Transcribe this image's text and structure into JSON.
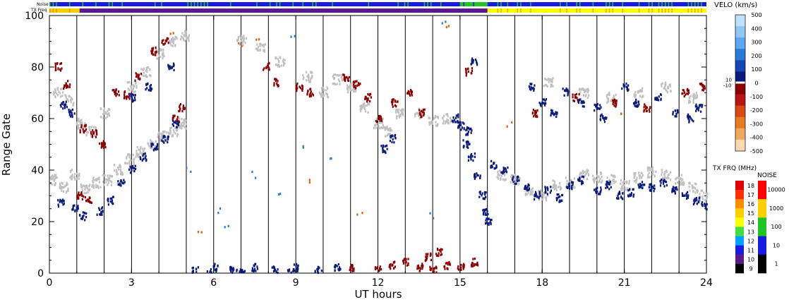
{
  "chart_data": {
    "type": "heatmap",
    "xlabel": "UT hours",
    "ylabel": "Range Gate",
    "xlim": [
      0,
      24
    ],
    "ylim": [
      0,
      100
    ],
    "x_ticks": [
      "0",
      "3",
      "6",
      "9",
      "12",
      "15",
      "18",
      "21",
      "24"
    ],
    "y_ticks": [
      "0",
      "20",
      "40",
      "60",
      "80",
      "100"
    ],
    "hour_lines": [
      1,
      2,
      3,
      4,
      5,
      6,
      7,
      8,
      9,
      10,
      11,
      12,
      13,
      14,
      15,
      16,
      17,
      18,
      19,
      20,
      21,
      22,
      23
    ],
    "strips": {
      "noise_label": "Noise",
      "freq_label": "TX Freq",
      "noise_segments": [
        {
          "from": 0,
          "to": 15,
          "color": "#1a1ae6",
          "speckle": "#22c422"
        },
        {
          "from": 15,
          "to": 16,
          "color": "#22c422",
          "speckle": "#1a1ae6"
        },
        {
          "from": 16,
          "to": 24,
          "color": "#1a1ae6",
          "speckle": "#22c422"
        }
      ],
      "freq_segments": [
        {
          "from": 0,
          "to": 1.1,
          "color": "#f0d000",
          "speckle": "#ff8c00"
        },
        {
          "from": 1.1,
          "to": 16,
          "color": "#5a1a8a",
          "speckle": "#5a1a8a"
        },
        {
          "from": 16,
          "to": 24,
          "color": "#ffff00",
          "speckle": "#ffa000"
        }
      ]
    },
    "series": [
      {
        "role": "ground-scatter",
        "color": "#c0c0c0",
        "points": [
          [
            0.1,
            36
          ],
          [
            0.5,
            33
          ],
          [
            0.9,
            38
          ],
          [
            1.3,
            33
          ],
          [
            1.7,
            35
          ],
          [
            2.1,
            36
          ],
          [
            2.5,
            40
          ],
          [
            2.9,
            44
          ],
          [
            3.3,
            47
          ],
          [
            3.7,
            50
          ],
          [
            4.1,
            53
          ],
          [
            4.5,
            55
          ],
          [
            4.8,
            58
          ],
          [
            0.3,
            70
          ],
          [
            0.7,
            67
          ],
          [
            1.1,
            58
          ],
          [
            1.5,
            55
          ],
          [
            2.0,
            62
          ],
          [
            3.0,
            72
          ],
          [
            3.5,
            78
          ],
          [
            4.0,
            85
          ],
          [
            4.5,
            90
          ],
          [
            4.9,
            92
          ],
          [
            10.5,
            75
          ],
          [
            11.0,
            72
          ],
          [
            11.5,
            64
          ],
          [
            12.0,
            58
          ],
          [
            12.3,
            55
          ],
          [
            12.8,
            62
          ],
          [
            13.5,
            62
          ],
          [
            14.0,
            59
          ],
          [
            14.5,
            60
          ],
          [
            16.5,
            38
          ],
          [
            17.0,
            36
          ],
          [
            17.5,
            32
          ],
          [
            18.0,
            30
          ],
          [
            18.5,
            34
          ],
          [
            19.0,
            35
          ],
          [
            19.5,
            38
          ],
          [
            20.0,
            37
          ],
          [
            20.5,
            36
          ],
          [
            21.0,
            34
          ],
          [
            21.5,
            37
          ],
          [
            22.0,
            39
          ],
          [
            22.5,
            38
          ],
          [
            23.0,
            36
          ],
          [
            23.5,
            33
          ],
          [
            23.9,
            30
          ],
          [
            18.2,
            74
          ],
          [
            19.5,
            70
          ],
          [
            20.5,
            68
          ],
          [
            21.5,
            70
          ],
          [
            22.5,
            72
          ],
          [
            23.5,
            68
          ],
          [
            7.0,
            90
          ],
          [
            7.7,
            87
          ],
          [
            8.4,
            82
          ],
          [
            9.4,
            76
          ],
          [
            10.0,
            70
          ]
        ]
      },
      {
        "role": "velocity-negative",
        "color": "#8b0000",
        "points": [
          [
            0.3,
            80
          ],
          [
            0.6,
            73
          ],
          [
            1.2,
            56
          ],
          [
            1.6,
            54
          ],
          [
            1.9,
            50
          ],
          [
            1.1,
            30
          ],
          [
            1.4,
            28
          ],
          [
            2.4,
            70
          ],
          [
            2.8,
            69
          ],
          [
            3.2,
            76
          ],
          [
            3.8,
            86
          ],
          [
            4.2,
            90
          ],
          [
            4.6,
            60
          ],
          [
            4.8,
            64
          ],
          [
            7.9,
            80
          ],
          [
            8.3,
            74
          ],
          [
            9.1,
            72
          ],
          [
            9.5,
            70
          ],
          [
            10.8,
            76
          ],
          [
            11.2,
            73
          ],
          [
            11.6,
            68
          ],
          [
            12.0,
            60
          ],
          [
            12.6,
            66
          ],
          [
            13.1,
            70
          ],
          [
            13.6,
            62
          ],
          [
            11.0,
            2
          ],
          [
            12.0,
            1
          ],
          [
            12.5,
            3
          ],
          [
            13.0,
            4
          ],
          [
            13.5,
            2
          ],
          [
            14.0,
            1
          ],
          [
            14.5,
            3
          ],
          [
            15.0,
            2
          ],
          [
            15.5,
            4
          ],
          [
            14.2,
            8
          ],
          [
            13.8,
            6
          ],
          [
            17.7,
            62
          ],
          [
            19.2,
            68
          ],
          [
            20.6,
            66
          ],
          [
            21.8,
            64
          ],
          [
            23.2,
            70
          ],
          [
            23.8,
            72
          ],
          [
            15.3,
            78
          ]
        ]
      },
      {
        "role": "velocity-positive",
        "color": "#0a1a7a",
        "points": [
          [
            0.4,
            27
          ],
          [
            0.9,
            25
          ],
          [
            1.2,
            22
          ],
          [
            1.8,
            24
          ],
          [
            2.2,
            28
          ],
          [
            2.6,
            35
          ],
          [
            3.0,
            40
          ],
          [
            3.4,
            45
          ],
          [
            3.8,
            49
          ],
          [
            4.2,
            52
          ],
          [
            4.6,
            58
          ],
          [
            0.5,
            65
          ],
          [
            0.8,
            62
          ],
          [
            3.0,
            68
          ],
          [
            3.6,
            72
          ],
          [
            4.4,
            80
          ],
          [
            5.3,
            1
          ],
          [
            6.0,
            2
          ],
          [
            6.7,
            1
          ],
          [
            7.5,
            2
          ],
          [
            8.2,
            1
          ],
          [
            9.0,
            2
          ],
          [
            9.8,
            1
          ],
          [
            10.5,
            2
          ],
          [
            5.8,
            0
          ],
          [
            7.0,
            0
          ],
          [
            8.8,
            0
          ],
          [
            15.2,
            50
          ],
          [
            15.4,
            45
          ],
          [
            15.6,
            38
          ],
          [
            15.8,
            30
          ],
          [
            15.9,
            24
          ],
          [
            16.0,
            20
          ],
          [
            16.2,
            42
          ],
          [
            16.6,
            40
          ],
          [
            17.0,
            36
          ],
          [
            17.4,
            33
          ],
          [
            17.8,
            30
          ],
          [
            18.2,
            32
          ],
          [
            18.6,
            29
          ],
          [
            19.0,
            34
          ],
          [
            19.4,
            36
          ],
          [
            20.0,
            32
          ],
          [
            20.4,
            34
          ],
          [
            20.8,
            30
          ],
          [
            21.2,
            31
          ],
          [
            21.6,
            34
          ],
          [
            22.0,
            33
          ],
          [
            22.4,
            35
          ],
          [
            22.8,
            32
          ],
          [
            23.2,
            30
          ],
          [
            23.6,
            28
          ],
          [
            23.9,
            26
          ],
          [
            17.6,
            72
          ],
          [
            18.0,
            66
          ],
          [
            18.4,
            62
          ],
          [
            18.8,
            70
          ],
          [
            19.4,
            66
          ],
          [
            20.0,
            64
          ],
          [
            20.2,
            60
          ],
          [
            21.0,
            72
          ],
          [
            21.4,
            66
          ],
          [
            22.2,
            68
          ],
          [
            22.8,
            62
          ],
          [
            23.4,
            60
          ],
          [
            23.7,
            64
          ],
          [
            14.8,
            60
          ],
          [
            15.0,
            57
          ],
          [
            15.3,
            55
          ],
          [
            15.5,
            82
          ],
          [
            12.5,
            52
          ],
          [
            12.2,
            48
          ]
        ]
      },
      {
        "role": "velocity-sparse",
        "color": "#2a7ad8",
        "points": [
          [
            5.1,
            40
          ],
          [
            6.1,
            24
          ],
          [
            7.4,
            38
          ],
          [
            8.3,
            30
          ],
          [
            9.3,
            50
          ],
          [
            10.2,
            44
          ],
          [
            14.4,
            98
          ],
          [
            8.9,
            92
          ],
          [
            6.5,
            18
          ],
          [
            13.9,
            22
          ]
        ]
      },
      {
        "role": "velocity-orange",
        "color": "#e06010",
        "points": [
          [
            4.5,
            93
          ],
          [
            7.6,
            92
          ],
          [
            14.6,
            96
          ],
          [
            6.9,
            88
          ],
          [
            11.3,
            22
          ],
          [
            5.5,
            15
          ],
          [
            9.6,
            35
          ],
          [
            16.8,
            58
          ],
          [
            20.9,
            62
          ]
        ]
      }
    ]
  },
  "velo_scale": {
    "title": "VELO (km/s)",
    "ticks": [
      "500",
      "400",
      "300",
      "200",
      "100",
      "0",
      "-100",
      "-200",
      "-300",
      "-400",
      "-500"
    ],
    "extra_ticks": [
      "10",
      "-10"
    ],
    "colors": [
      "#bfe3ff",
      "#8fc8f8",
      "#5aa8f0",
      "#2a7ad8",
      "#1446b8",
      "#0a1a7a",
      "#8b0000",
      "#b81414",
      "#d84a10",
      "#e87a20",
      "#f0a860",
      "#ffd8b0"
    ]
  },
  "freq_scale": {
    "title": "TX FRQ (MHz)",
    "ticks": [
      "18",
      "17",
      "16",
      "15",
      "14",
      "13",
      "12",
      "11",
      "10",
      "9"
    ],
    "colors": [
      "#e00000",
      "#ff3000",
      "#ff8c00",
      "#ffd000",
      "#ffff00",
      "#40e040",
      "#00a0ff",
      "#1a1ae6",
      "#5a1a8a",
      "#000000"
    ]
  },
  "noise_scale": {
    "title": "NOISE",
    "ticks": [
      "10000",
      "1000",
      "100",
      "10",
      "1"
    ],
    "colors": [
      "#ff0000",
      "#ffd000",
      "#22c422",
      "#1a1ae6",
      "#000000"
    ]
  }
}
